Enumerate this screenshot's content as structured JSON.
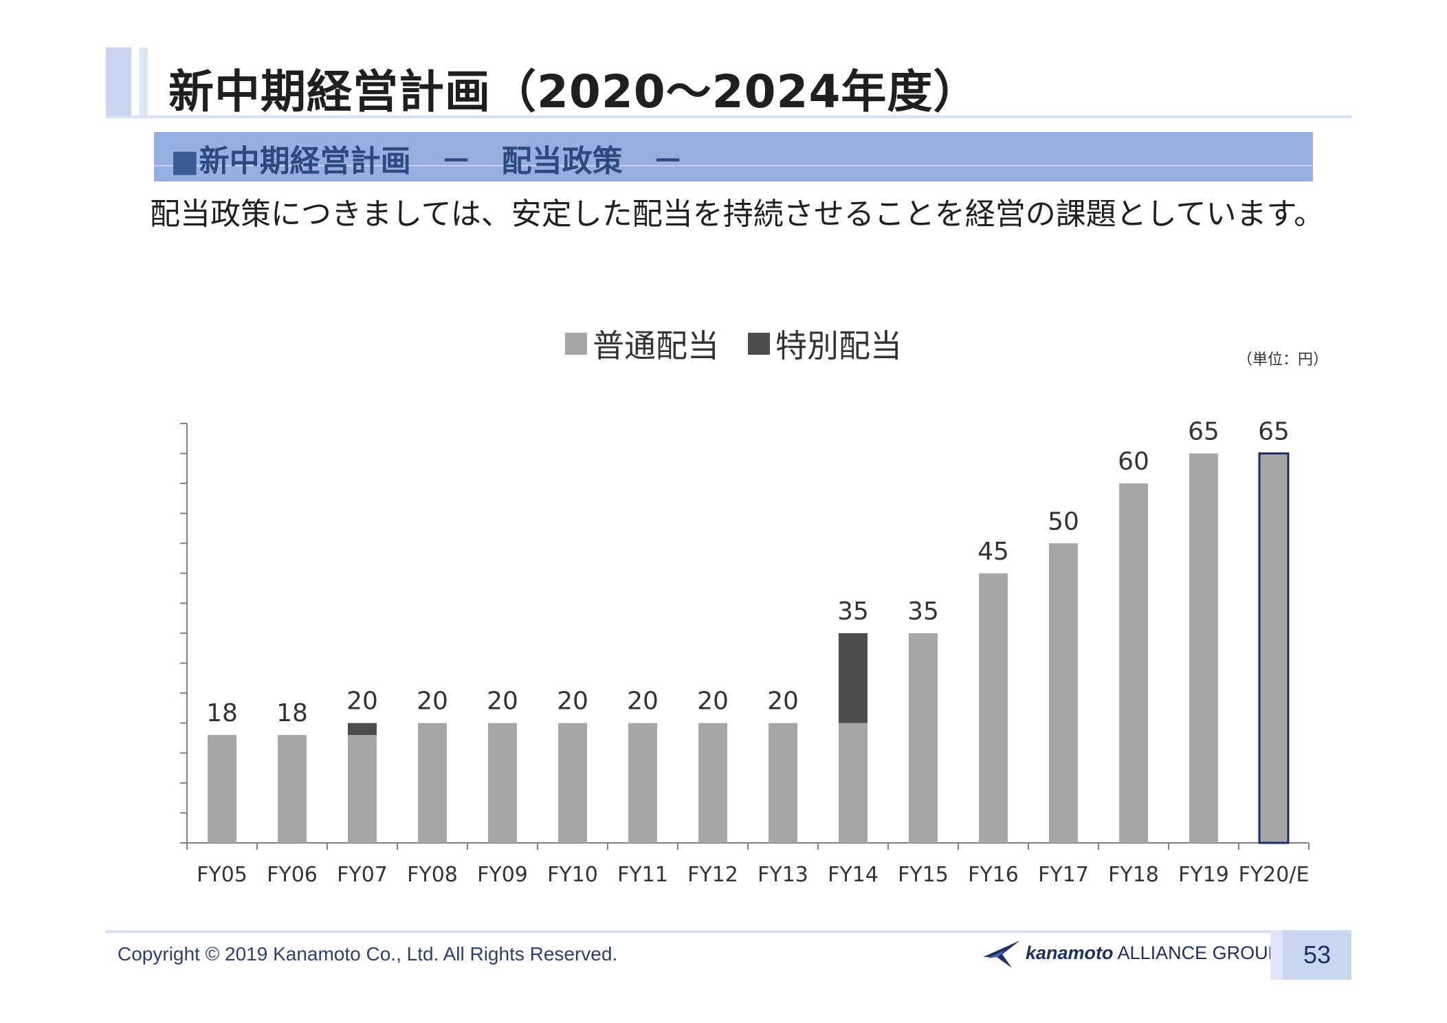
{
  "slide": {
    "title": "新中期経営計画（2020～2024年度）",
    "section_prefix": "■",
    "section_label": "新中期経営計画　－　配当政策　－",
    "lead_text": "配当政策につきましては、安定した配当を持続させることを経営の課題としています。",
    "unit_label": "（単位：円）",
    "copyright": "Copyright © 2019 Kanamoto Co., Ltd. All Rights Reserved.",
    "logo_brand": "kanamoto",
    "logo_group": "ALLIANCE GROUP",
    "page_number": "53"
  },
  "colors": {
    "ordinary": "#a6a6a6",
    "special": "#4d4d4d",
    "forecast_outline": "#1f2d66",
    "axis": "#808080",
    "label": "#333333"
  },
  "chart_data": {
    "type": "bar",
    "stacked": true,
    "categories": [
      "FY05",
      "FY06",
      "FY07",
      "FY08",
      "FY09",
      "FY10",
      "FY11",
      "FY12",
      "FY13",
      "FY14",
      "FY15",
      "FY16",
      "FY17",
      "FY18",
      "FY19",
      "FY20/E"
    ],
    "series": [
      {
        "name": "普通配当",
        "values": [
          18,
          18,
          18,
          20,
          20,
          20,
          20,
          20,
          20,
          20,
          35,
          45,
          50,
          60,
          65,
          65
        ]
      },
      {
        "name": "特別配当",
        "values": [
          0,
          0,
          2,
          0,
          0,
          0,
          0,
          0,
          0,
          15,
          0,
          0,
          0,
          0,
          0,
          0
        ]
      }
    ],
    "totals": [
      "18",
      "18",
      "20",
      "20",
      "20",
      "20",
      "20",
      "20",
      "20",
      "35",
      "35",
      "45",
      "50",
      "60",
      "65",
      "65"
    ],
    "forecast_index": 15,
    "ylim": [
      0,
      70
    ],
    "ytick_step": 5,
    "legend_position": "top",
    "ylabel": "",
    "xlabel": ""
  }
}
